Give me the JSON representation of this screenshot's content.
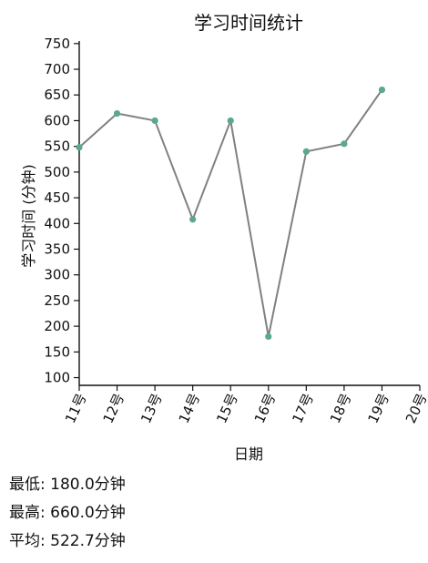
{
  "chart_data": {
    "type": "line",
    "title": "学习时间统计",
    "xlabel": "日期",
    "ylabel": "学习时间 (分钟)",
    "categories": [
      "11号",
      "12号",
      "13号",
      "14号",
      "15号",
      "16号",
      "17号",
      "18号",
      "19号",
      "20号"
    ],
    "series": [
      {
        "values": [
          548,
          614,
          600,
          408,
          600,
          180,
          540,
          555,
          660,
          null
        ]
      }
    ],
    "ylim": [
      85,
      755
    ],
    "yticks": [
      100,
      150,
      200,
      250,
      300,
      350,
      400,
      450,
      500,
      550,
      600,
      650,
      700,
      750
    ],
    "grid": false,
    "colors": {
      "line": "#808080",
      "point": "#5aa989"
    }
  },
  "stats": {
    "min": "最低: 180.0分钟",
    "max": "最高: 660.0分钟",
    "avg": "平均: 522.7分钟"
  }
}
